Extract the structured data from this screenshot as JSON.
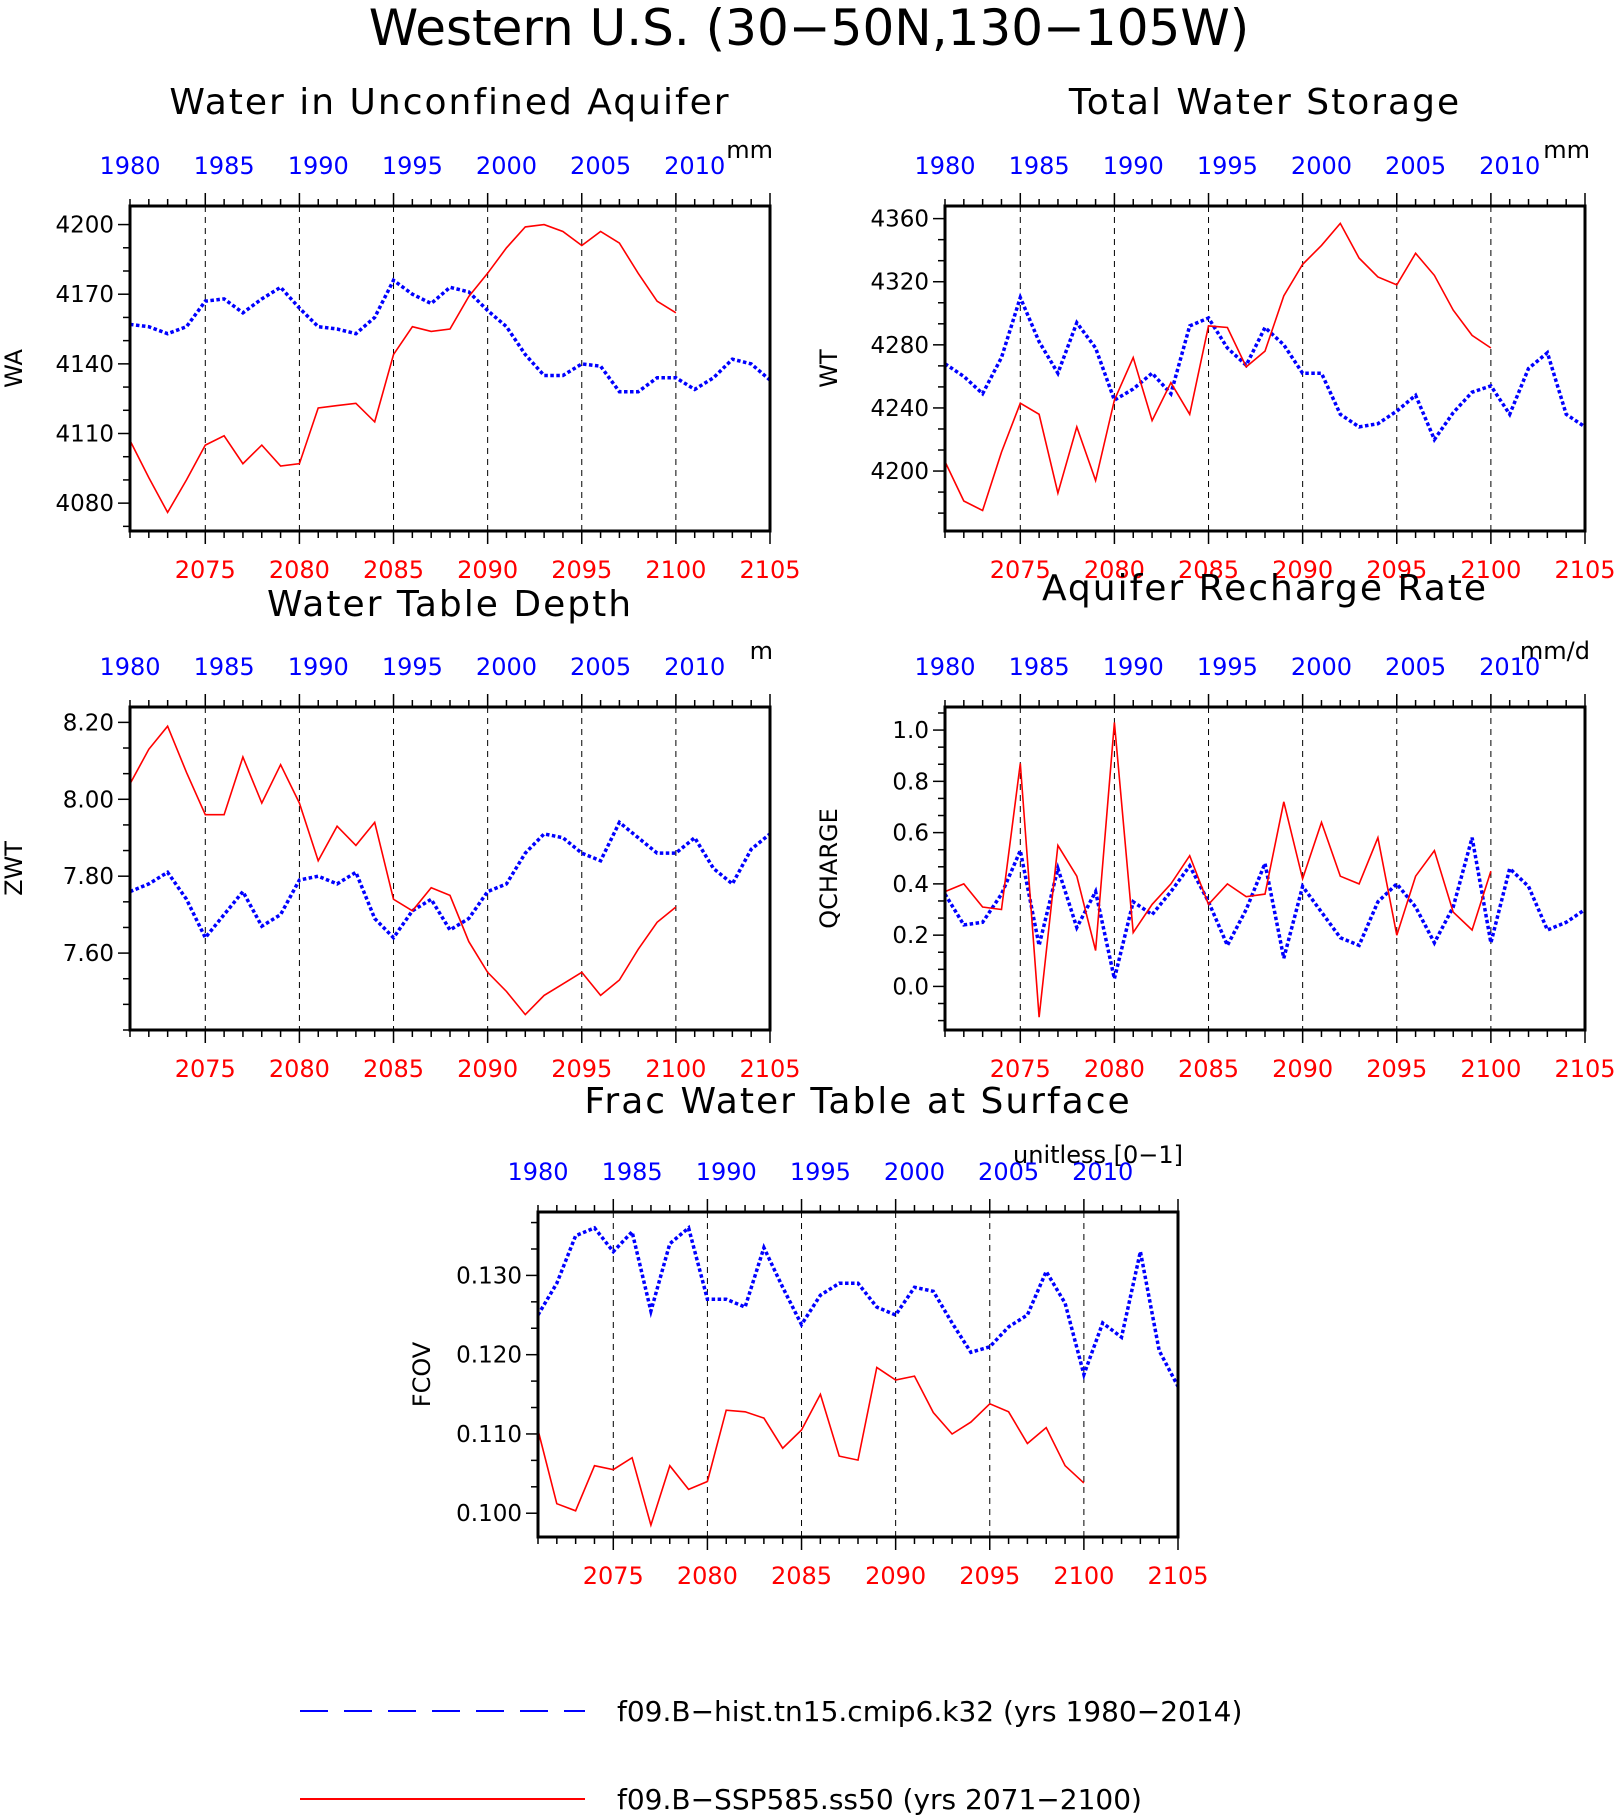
{
  "page_title": "Western U.S. (30−50N,130−105W)",
  "colors": {
    "hist": "#0000ff",
    "ssp": "#ff0000",
    "axis": "#000000"
  },
  "legend": [
    {
      "label": "f09.B−hist.tn15.cmip6.k32 (yrs 1980−2014)",
      "style": "dashed",
      "color": "#0000ff"
    },
    {
      "label": "f09.B−SSP585.ss50 (yrs 2071−2100)",
      "style": "solid",
      "color": "#ff0000"
    }
  ],
  "chart_data": [
    {
      "type": "line",
      "title": "Water in Unconfined Aquifer",
      "ylabel": "WA",
      "units": "mm",
      "ylim": [
        4068,
        4208
      ],
      "yticks": [
        4080,
        4110,
        4140,
        4170,
        4200
      ],
      "ytick_labels": [
        "4080",
        "4110",
        "4140",
        "4170",
        "4200"
      ],
      "x_bottom": {
        "range": [
          2071,
          2105
        ],
        "ticks": [
          2075,
          2080,
          2085,
          2090,
          2095,
          2100,
          2105
        ]
      },
      "x_top": {
        "range": [
          1980,
          2014
        ],
        "ticks": [
          1980,
          1985,
          1990,
          1995,
          2000,
          2005,
          2010
        ]
      },
      "series": [
        {
          "key": "hist",
          "x_start": 1980,
          "values": [
            4157,
            4156,
            4153,
            4156,
            4167,
            4168,
            4162,
            4168,
            4173,
            4164,
            4156,
            4155,
            4153,
            4160,
            4176,
            4170,
            4166,
            4173,
            4171,
            4163,
            4156,
            4144,
            4135,
            4135,
            4140,
            4139,
            4128,
            4128,
            4134,
            4134,
            4129,
            4134,
            4142,
            4140,
            4133
          ]
        },
        {
          "key": "ssp",
          "x_start": 2071,
          "values": [
            4107,
            4091,
            4076,
            4090,
            4105,
            4109,
            4097,
            4105,
            4096,
            4097,
            4121,
            4122,
            4123,
            4115,
            4144,
            4156,
            4154,
            4155,
            4169,
            4179,
            4190,
            4199,
            4200,
            4197,
            4191,
            4197,
            4192,
            4179,
            4167,
            4162
          ]
        }
      ]
    },
    {
      "type": "line",
      "title": "Total Water Storage",
      "ylabel": "WT",
      "units": "mm",
      "ylim": [
        4162,
        4368
      ],
      "yticks": [
        4200,
        4240,
        4280,
        4320,
        4360
      ],
      "ytick_labels": [
        "4200",
        "4240",
        "4280",
        "4320",
        "4360"
      ],
      "x_bottom": {
        "range": [
          2071,
          2105
        ],
        "ticks": [
          2075,
          2080,
          2085,
          2090,
          2095,
          2100,
          2105
        ]
      },
      "x_top": {
        "range": [
          1980,
          2014
        ],
        "ticks": [
          1980,
          1985,
          1990,
          1995,
          2000,
          2005,
          2010
        ]
      },
      "series": [
        {
          "key": "hist",
          "x_start": 1980,
          "values": [
            4268,
            4260,
            4249,
            4272,
            4310,
            4282,
            4262,
            4294,
            4278,
            4245,
            4252,
            4262,
            4249,
            4292,
            4297,
            4278,
            4267,
            4291,
            4280,
            4262,
            4262,
            4236,
            4228,
            4230,
            4238,
            4248,
            4220,
            4237,
            4250,
            4254,
            4236,
            4265,
            4275,
            4236,
            4228
          ]
        },
        {
          "key": "ssp",
          "x_start": 2071,
          "values": [
            4206,
            4181,
            4175,
            4212,
            4243,
            4236,
            4186,
            4228,
            4194,
            4245,
            4272,
            4232,
            4256,
            4236,
            4292,
            4291,
            4266,
            4276,
            4311,
            4331,
            4343,
            4357,
            4335,
            4323,
            4318,
            4338,
            4324,
            4302,
            4286,
            4278
          ]
        }
      ]
    },
    {
      "type": "line",
      "title": "Water Table Depth",
      "ylabel": "ZWT",
      "units": "m",
      "ylim": [
        7.4,
        8.24
      ],
      "yticks": [
        7.6,
        7.8,
        8.0,
        8.2
      ],
      "ytick_labels": [
        "7.60",
        "7.80",
        "8.00",
        "8.20"
      ],
      "x_bottom": {
        "range": [
          2071,
          2105
        ],
        "ticks": [
          2075,
          2080,
          2085,
          2090,
          2095,
          2100,
          2105
        ]
      },
      "x_top": {
        "range": [
          1980,
          2014
        ],
        "ticks": [
          1980,
          1985,
          1990,
          1995,
          2000,
          2005,
          2010
        ]
      },
      "series": [
        {
          "key": "hist",
          "x_start": 1980,
          "values": [
            7.76,
            7.78,
            7.81,
            7.74,
            7.64,
            7.7,
            7.76,
            7.67,
            7.7,
            7.79,
            7.8,
            7.78,
            7.81,
            7.69,
            7.64,
            7.71,
            7.74,
            7.66,
            7.69,
            7.76,
            7.78,
            7.86,
            7.91,
            7.9,
            7.86,
            7.84,
            7.94,
            7.9,
            7.86,
            7.86,
            7.9,
            7.82,
            7.78,
            7.87,
            7.91
          ]
        },
        {
          "key": "ssp",
          "x_start": 2071,
          "values": [
            8.04,
            8.13,
            8.19,
            8.07,
            7.96,
            7.96,
            8.11,
            7.99,
            8.09,
            7.99,
            7.84,
            7.93,
            7.88,
            7.94,
            7.74,
            7.71,
            7.77,
            7.75,
            7.63,
            7.55,
            7.5,
            7.44,
            7.49,
            7.52,
            7.55,
            7.49,
            7.53,
            7.61,
            7.68,
            7.72
          ]
        }
      ]
    },
    {
      "type": "line",
      "title": "Aquifer Recharge Rate",
      "ylabel": "QCHARGE",
      "units": "mm/d",
      "ylim": [
        -0.17,
        1.09
      ],
      "yticks": [
        0.0,
        0.2,
        0.4,
        0.6,
        0.8,
        1.0
      ],
      "ytick_labels": [
        "0.0",
        "0.2",
        "0.4",
        "0.6",
        "0.8",
        "1.0"
      ],
      "x_bottom": {
        "range": [
          2071,
          2105
        ],
        "ticks": [
          2075,
          2080,
          2085,
          2090,
          2095,
          2100,
          2105
        ]
      },
      "x_top": {
        "range": [
          1980,
          2014
        ],
        "ticks": [
          1980,
          1985,
          1990,
          1995,
          2000,
          2005,
          2010
        ]
      },
      "series": [
        {
          "key": "hist",
          "x_start": 1980,
          "values": [
            0.36,
            0.24,
            0.25,
            0.36,
            0.53,
            0.16,
            0.46,
            0.23,
            0.37,
            0.03,
            0.33,
            0.28,
            0.37,
            0.47,
            0.33,
            0.16,
            0.3,
            0.48,
            0.11,
            0.39,
            0.29,
            0.19,
            0.16,
            0.33,
            0.4,
            0.31,
            0.17,
            0.31,
            0.58,
            0.17,
            0.46,
            0.39,
            0.22,
            0.25,
            0.3
          ]
        },
        {
          "key": "ssp",
          "x_start": 2071,
          "values": [
            0.37,
            0.4,
            0.31,
            0.3,
            0.87,
            -0.12,
            0.55,
            0.43,
            0.14,
            1.03,
            0.21,
            0.32,
            0.4,
            0.51,
            0.32,
            0.4,
            0.35,
            0.36,
            0.72,
            0.42,
            0.64,
            0.43,
            0.4,
            0.58,
            0.2,
            0.43,
            0.53,
            0.29,
            0.22,
            0.45
          ]
        }
      ]
    },
    {
      "type": "line",
      "title": "Frac Water Table at Surface",
      "ylabel": "FCOV",
      "units": "unitless [0−1]",
      "ylim": [
        0.097,
        0.138
      ],
      "yticks": [
        0.1,
        0.11,
        0.12,
        0.13
      ],
      "ytick_labels": [
        "0.100",
        "0.110",
        "0.120",
        "0.130"
      ],
      "x_bottom": {
        "range": [
          2071,
          2105
        ],
        "ticks": [
          2075,
          2080,
          2085,
          2090,
          2095,
          2100,
          2105
        ]
      },
      "x_top": {
        "range": [
          1980,
          2014
        ],
        "ticks": [
          1980,
          1985,
          1990,
          1995,
          2000,
          2005,
          2010
        ]
      },
      "series": [
        {
          "key": "hist",
          "x_start": 1980,
          "values": [
            0.125,
            0.129,
            0.135,
            0.136,
            0.133,
            0.1355,
            0.1255,
            0.134,
            0.136,
            0.127,
            0.127,
            0.126,
            0.1335,
            0.1285,
            0.1238,
            0.1275,
            0.129,
            0.129,
            0.126,
            0.125,
            0.1285,
            0.128,
            0.124,
            0.1203,
            0.121,
            0.1235,
            0.125,
            0.1305,
            0.1265,
            0.1175,
            0.124,
            0.1222,
            0.133,
            0.1205,
            0.116
          ]
        },
        {
          "key": "ssp",
          "x_start": 2071,
          "values": [
            0.1105,
            0.1012,
            0.1003,
            0.106,
            0.1055,
            0.107,
            0.0985,
            0.106,
            0.103,
            0.104,
            0.113,
            0.1128,
            0.112,
            0.1082,
            0.1105,
            0.115,
            0.1072,
            0.1067,
            0.1184,
            0.1168,
            0.1173,
            0.1127,
            0.11,
            0.1115,
            0.1138,
            0.1128,
            0.1088,
            0.1108,
            0.106,
            0.1038
          ]
        }
      ]
    }
  ]
}
